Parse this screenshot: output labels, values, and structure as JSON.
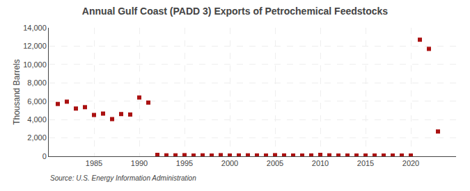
{
  "chart_data": {
    "type": "scatter",
    "title": "Annual Gulf Coast (PADD 3) Exports of Petrochemical Feedstocks",
    "ylabel": "Thousand Barrels",
    "annotations": [
      "Source: U.S. Energy Information Administration"
    ],
    "x": [
      1981,
      1982,
      1983,
      1984,
      1985,
      1986,
      1987,
      1988,
      1989,
      1990,
      1991,
      1992,
      1993,
      1994,
      1995,
      1996,
      1997,
      1998,
      1999,
      2000,
      2001,
      2002,
      2003,
      2004,
      2005,
      2006,
      2007,
      2008,
      2009,
      2010,
      2011,
      2012,
      2013,
      2014,
      2015,
      2016,
      2017,
      2018,
      2019,
      2020,
      2021,
      2022,
      2023
    ],
    "values": [
      5700,
      5950,
      5200,
      5350,
      4500,
      4650,
      4050,
      4600,
      4550,
      6400,
      5850,
      150,
      100,
      100,
      120,
      80,
      100,
      80,
      120,
      80,
      90,
      100,
      90,
      80,
      120,
      90,
      80,
      80,
      90,
      150,
      100,
      80,
      80,
      80,
      80,
      80,
      80,
      80,
      80,
      80,
      12700,
      11700,
      2700
    ],
    "color": "#aa1111",
    "marker": "square",
    "xlim": [
      1980,
      2025
    ],
    "xticks": [
      1985,
      1990,
      1995,
      2000,
      2005,
      2010,
      2015,
      2020
    ],
    "ylim": [
      0,
      14000
    ],
    "yticks": [
      0,
      {
        "value": 2000,
        "label": "2,000"
      },
      {
        "value": 4000,
        "label": "4,000"
      },
      {
        "value": 6000,
        "label": "6,000"
      },
      {
        "value": 8000,
        "label": "8,000"
      },
      {
        "value": 10000,
        "label": "10,000"
      },
      {
        "value": 12000,
        "label": "12,000"
      },
      {
        "value": 14000,
        "label": "14,000"
      }
    ],
    "grid": true
  }
}
